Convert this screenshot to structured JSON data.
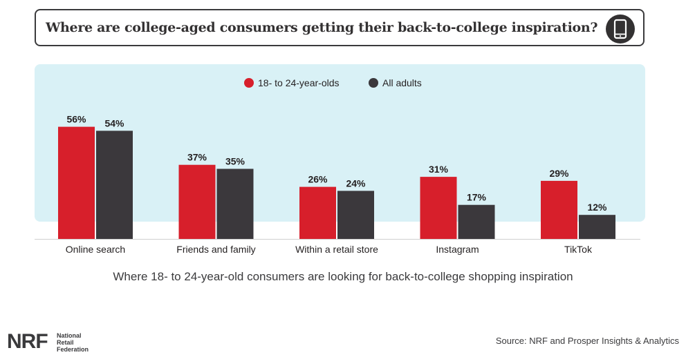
{
  "title": "Where are college-aged consumers getting their back-to-college inspiration?",
  "caption": "Where 18- to 24-year-old consumers are looking for back-to-college shopping inspiration",
  "source": "Source: NRF and Prosper Insights & Analytics",
  "logo": {
    "mark": "NRF",
    "line1": "National",
    "line2": "Retail",
    "line3": "Federation"
  },
  "icons": {
    "header": "smartphone-icon"
  },
  "colors": {
    "series1": "#d71f2b",
    "series2": "#3b383c",
    "panel": "#d9f1f6"
  },
  "chart_data": {
    "type": "bar",
    "categories": [
      "Online search",
      "Friends and family",
      "Within a retail store",
      "Instagram",
      "TikTok"
    ],
    "series": [
      {
        "name": "18- to 24-year-olds",
        "values": [
          56,
          37,
          26,
          31,
          29
        ],
        "labels": [
          "56%",
          "37%",
          "26%",
          "31%",
          "29%"
        ]
      },
      {
        "name": "All adults",
        "values": [
          54,
          35,
          24,
          17,
          12
        ],
        "labels": [
          "54%",
          "35%",
          "24%",
          "17%",
          "12%"
        ]
      }
    ],
    "unit": "%",
    "ylim": [
      0,
      56
    ],
    "grid": false,
    "legend_position": "top-center"
  }
}
